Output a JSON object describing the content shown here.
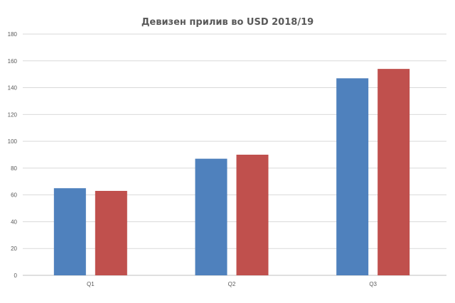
{
  "chart_data": {
    "type": "bar",
    "title": "Девизен прилив во USD 2018/19",
    "categories": [
      "Q1",
      "Q2",
      "Q3"
    ],
    "series": [
      {
        "values": [
          65,
          87,
          147
        ],
        "color": "#4f81bd"
      },
      {
        "values": [
          63,
          90,
          154
        ],
        "color": "#c0504d"
      }
    ],
    "ylim": [
      0,
      180
    ],
    "yticks": [
      0,
      20,
      40,
      60,
      80,
      100,
      120,
      140,
      160,
      180
    ],
    "grid": true,
    "legend": "none",
    "gridline_color": "#d9d9d9",
    "axis_color": "#bfbfbf"
  }
}
